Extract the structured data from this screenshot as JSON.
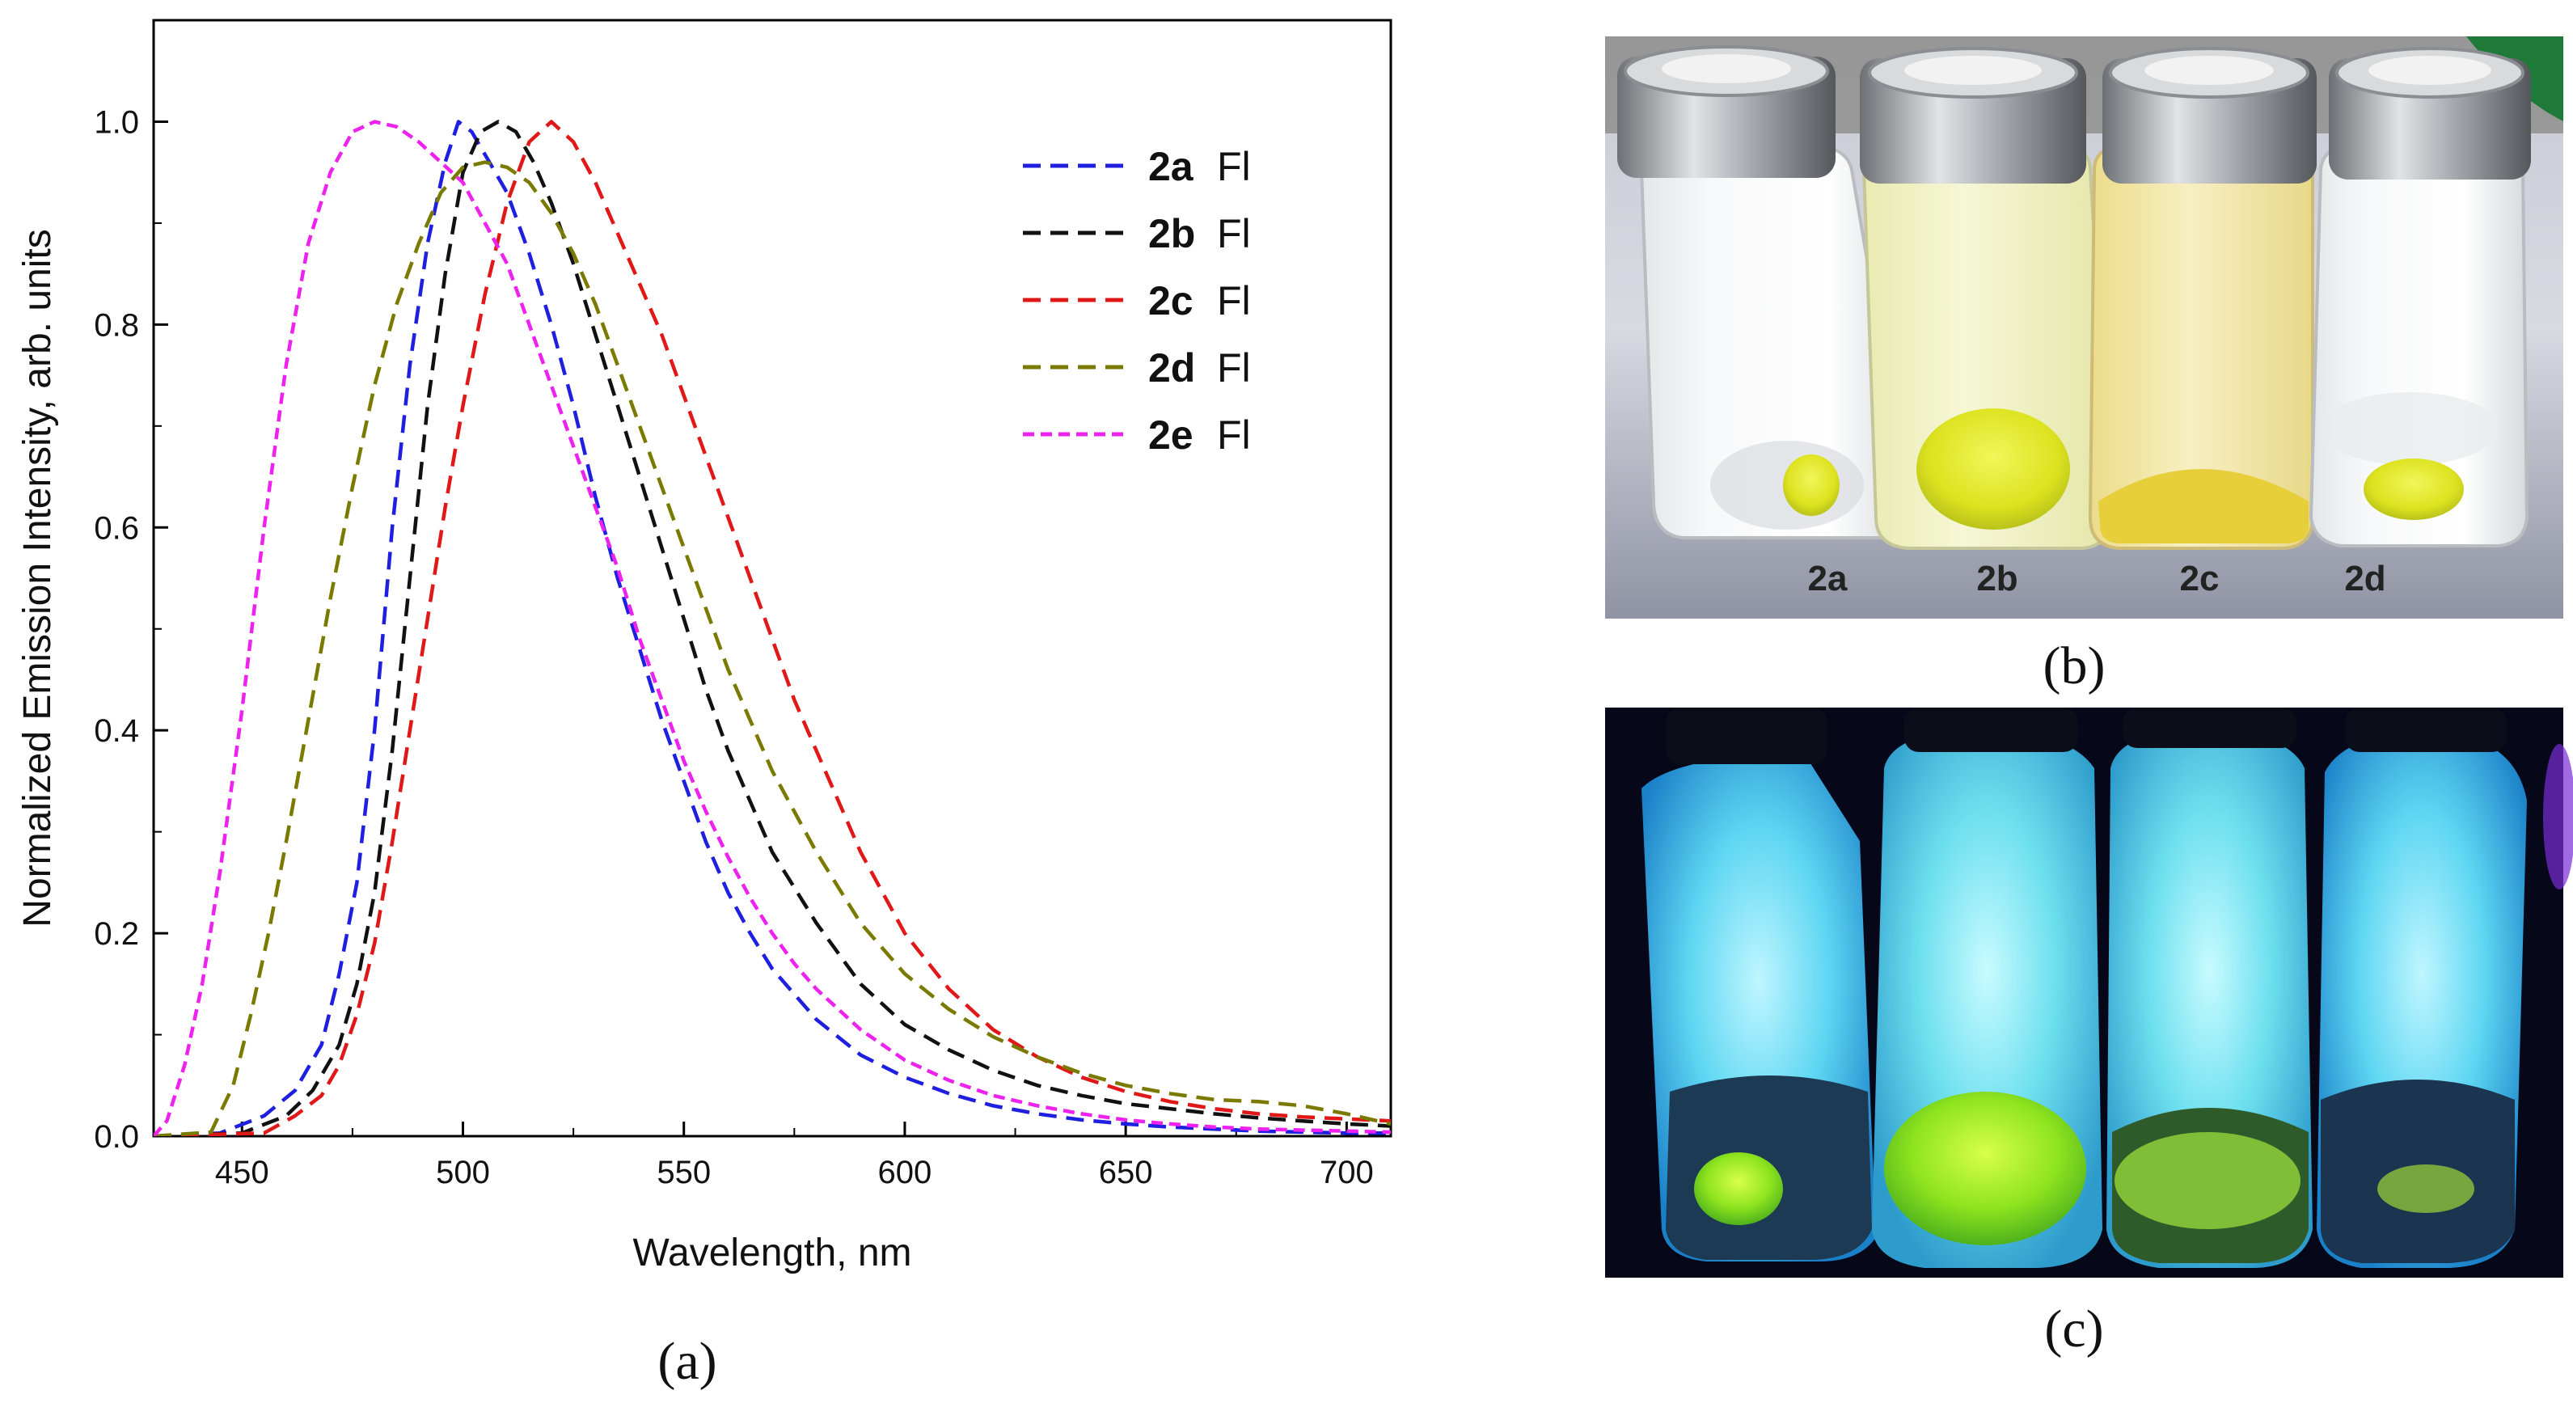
{
  "chart_data": {
    "type": "line",
    "xlabel": "Wavelength, nm",
    "ylabel": "Normalized Emission Intensity, arb. units",
    "xlim": [
      430,
      710
    ],
    "ylim": [
      0.0,
      1.1
    ],
    "x_ticks": [
      450,
      500,
      550,
      600,
      650,
      700
    ],
    "y_ticks": [
      0.0,
      0.2,
      0.4,
      0.6,
      0.8,
      1.0
    ],
    "x_tick_labels": [
      "450",
      "500",
      "550",
      "600",
      "650",
      "700"
    ],
    "y_tick_labels": [
      "0.0",
      "0.2",
      "0.4",
      "0.6",
      "0.8",
      "1.0"
    ],
    "legend_position": "top-right",
    "series": [
      {
        "name": "2a",
        "suffix": "Fl",
        "color": "#1f1fe0",
        "x": [
          430,
          445,
          455,
          462,
          468,
          472,
          476,
          480,
          484,
          488,
          492,
          496,
          499,
          502,
          506,
          510,
          515,
          520,
          525,
          530,
          535,
          540,
          545,
          550,
          555,
          560,
          565,
          570,
          575,
          580,
          590,
          600,
          610,
          620,
          630,
          640,
          650,
          660,
          670,
          680,
          690,
          700,
          710
        ],
        "y": [
          0.0,
          0.003,
          0.02,
          0.045,
          0.09,
          0.16,
          0.25,
          0.4,
          0.6,
          0.76,
          0.88,
          0.96,
          1.0,
          0.99,
          0.96,
          0.93,
          0.87,
          0.8,
          0.72,
          0.63,
          0.55,
          0.48,
          0.41,
          0.35,
          0.29,
          0.24,
          0.2,
          0.165,
          0.14,
          0.115,
          0.08,
          0.058,
          0.042,
          0.03,
          0.022,
          0.016,
          0.012,
          0.009,
          0.007,
          0.005,
          0.004,
          0.003,
          0.003
        ]
      },
      {
        "name": "2b",
        "suffix": "Fl",
        "color": "#111111",
        "x": [
          430,
          450,
          460,
          466,
          472,
          476,
          480,
          484,
          488,
          492,
          496,
          500,
          504,
          508,
          512,
          516,
          520,
          525,
          530,
          535,
          540,
          545,
          550,
          555,
          560,
          565,
          570,
          575,
          580,
          590,
          600,
          610,
          620,
          630,
          640,
          650,
          660,
          670,
          680,
          690,
          700,
          710
        ],
        "y": [
          0.0,
          0.003,
          0.02,
          0.045,
          0.09,
          0.15,
          0.24,
          0.38,
          0.55,
          0.72,
          0.85,
          0.95,
          0.99,
          1.0,
          0.99,
          0.96,
          0.92,
          0.86,
          0.79,
          0.72,
          0.65,
          0.58,
          0.51,
          0.44,
          0.38,
          0.33,
          0.28,
          0.245,
          0.21,
          0.15,
          0.11,
          0.085,
          0.065,
          0.05,
          0.04,
          0.032,
          0.027,
          0.022,
          0.018,
          0.015,
          0.012,
          0.01
        ]
      },
      {
        "name": "2c",
        "suffix": "Fl",
        "color": "#e01818",
        "x": [
          430,
          455,
          462,
          468,
          472,
          476,
          480,
          484,
          488,
          492,
          496,
          500,
          505,
          510,
          515,
          520,
          525,
          530,
          535,
          540,
          545,
          550,
          555,
          560,
          565,
          570,
          575,
          580,
          585,
          590,
          600,
          610,
          620,
          630,
          640,
          650,
          660,
          670,
          680,
          690,
          700,
          710
        ],
        "y": [
          0.0,
          0.003,
          0.02,
          0.04,
          0.07,
          0.12,
          0.19,
          0.29,
          0.4,
          0.51,
          0.62,
          0.72,
          0.83,
          0.92,
          0.98,
          1.0,
          0.98,
          0.94,
          0.89,
          0.84,
          0.79,
          0.73,
          0.67,
          0.61,
          0.55,
          0.49,
          0.43,
          0.38,
          0.33,
          0.28,
          0.2,
          0.145,
          0.105,
          0.078,
          0.058,
          0.044,
          0.034,
          0.027,
          0.022,
          0.019,
          0.017,
          0.015
        ]
      },
      {
        "name": "2d",
        "suffix": "Fl",
        "color": "#7a7a00",
        "x": [
          430,
          443,
          448,
          452,
          456,
          460,
          465,
          470,
          475,
          480,
          485,
          490,
          495,
          500,
          505,
          510,
          515,
          520,
          525,
          530,
          535,
          540,
          545,
          550,
          555,
          560,
          565,
          570,
          575,
          580,
          590,
          600,
          610,
          620,
          630,
          640,
          650,
          660,
          670,
          680,
          690,
          700,
          710
        ],
        "y": [
          0.0,
          0.004,
          0.05,
          0.12,
          0.2,
          0.29,
          0.41,
          0.53,
          0.64,
          0.74,
          0.82,
          0.88,
          0.93,
          0.955,
          0.96,
          0.955,
          0.94,
          0.91,
          0.87,
          0.82,
          0.76,
          0.7,
          0.64,
          0.58,
          0.52,
          0.46,
          0.41,
          0.36,
          0.32,
          0.28,
          0.21,
          0.16,
          0.125,
          0.098,
          0.078,
          0.062,
          0.05,
          0.042,
          0.036,
          0.034,
          0.03,
          0.022,
          0.012
        ]
      },
      {
        "name": "2e",
        "suffix": "Fl",
        "color": "#ee22ee",
        "x": [
          430,
          433,
          437,
          441,
          445,
          450,
          455,
          460,
          465,
          470,
          475,
          480,
          485,
          490,
          495,
          500,
          505,
          510,
          515,
          520,
          525,
          530,
          535,
          540,
          545,
          550,
          555,
          560,
          565,
          570,
          575,
          580,
          590,
          600,
          610,
          620,
          630,
          640,
          650,
          660,
          670,
          680,
          690,
          700,
          710
        ],
        "y": [
          0.0,
          0.015,
          0.07,
          0.15,
          0.26,
          0.42,
          0.6,
          0.76,
          0.88,
          0.95,
          0.99,
          1.0,
          0.995,
          0.98,
          0.96,
          0.94,
          0.9,
          0.86,
          0.8,
          0.74,
          0.68,
          0.62,
          0.56,
          0.49,
          0.43,
          0.37,
          0.32,
          0.275,
          0.235,
          0.2,
          0.17,
          0.145,
          0.105,
          0.075,
          0.055,
          0.04,
          0.03,
          0.022,
          0.016,
          0.012,
          0.009,
          0.007,
          0.006,
          0.005,
          0.004
        ]
      }
    ]
  },
  "panels": {
    "a_label": "(a)",
    "b_label": "(b)",
    "c_label": "(c)"
  },
  "vial_labels": [
    "2a",
    "2b",
    "2c",
    "2d"
  ]
}
